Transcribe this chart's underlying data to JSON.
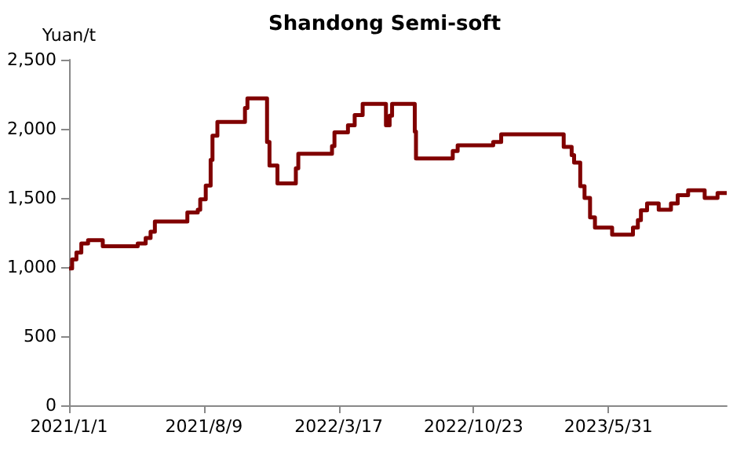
{
  "chart_data": {
    "type": "step",
    "title": "Shandong Semi-soft",
    "ylabel": "Yuan/t",
    "x": [
      "2021-01-01",
      "2021-01-06",
      "2021-01-13",
      "2021-01-21",
      "2021-02-01",
      "2021-02-25",
      "2021-03-03",
      "2021-04-23",
      "2021-05-06",
      "2021-05-14",
      "2021-05-21",
      "2021-07-13",
      "2021-07-30",
      "2021-08-03",
      "2021-08-12",
      "2021-08-20",
      "2021-08-23",
      "2021-08-31",
      "2021-10-15",
      "2021-10-19",
      "2021-11-20",
      "2021-11-24",
      "2021-12-07",
      "2022-01-06",
      "2022-01-10",
      "2022-03-06",
      "2022-03-10",
      "2022-04-01",
      "2022-04-12",
      "2022-04-25",
      "2022-06-02",
      "2022-06-08",
      "2022-06-12",
      "2022-07-19",
      "2022-07-21",
      "2022-09-19",
      "2022-09-27",
      "2022-11-24",
      "2022-12-07",
      "2023-03-19",
      "2023-04-01",
      "2023-04-05",
      "2023-04-15",
      "2023-04-22",
      "2023-05-01",
      "2023-05-09",
      "2023-06-06",
      "2023-07-10",
      "2023-07-18",
      "2023-07-23",
      "2023-08-02",
      "2023-08-21",
      "2023-09-10",
      "2023-09-21",
      "2023-10-08",
      "2023-11-04",
      "2023-11-25",
      "2023-12-10"
    ],
    "series": [
      {
        "color": "#800000",
        "values": [
          990,
          1055,
          1105,
          1170,
          1195,
          1150,
          1150,
          1170,
          1210,
          1255,
          1330,
          1395,
          1415,
          1490,
          1590,
          1775,
          1950,
          2050,
          2150,
          2220,
          1905,
          1735,
          1605,
          1715,
          1820,
          1875,
          1975,
          2025,
          2100,
          2180,
          2025,
          2095,
          2180,
          1980,
          1785,
          1840,
          1880,
          1905,
          1960,
          1870,
          1810,
          1755,
          1585,
          1500,
          1360,
          1285,
          1235,
          1285,
          1340,
          1410,
          1460,
          1415,
          1460,
          1520,
          1555,
          1500,
          1535,
          1535
        ]
      }
    ],
    "xlim": [
      "2021-01-01",
      "2023-12-10"
    ],
    "xticks": [
      {
        "value": "2021-01-01",
        "label": "2021/1/1"
      },
      {
        "value": "2021-08-09",
        "label": "2021/8/9"
      },
      {
        "value": "2022-03-17",
        "label": "2022/3/17"
      },
      {
        "value": "2022-10-23",
        "label": "2022/10/23"
      },
      {
        "value": "2023-05-31",
        "label": "2023/5/31"
      }
    ],
    "ylim": [
      0,
      2500
    ],
    "yticks": [
      0,
      500,
      {
        "value": 1000,
        "label": "1,000"
      },
      {
        "value": 1500,
        "label": "1,500"
      },
      {
        "value": 2000,
        "label": "2,000"
      },
      {
        "value": 2500,
        "label": "2,500"
      }
    ],
    "grid": false,
    "marker": "none",
    "line_style": "solid"
  }
}
